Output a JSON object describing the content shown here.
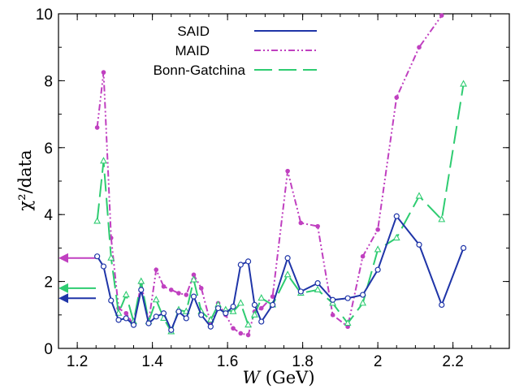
{
  "chart_data": {
    "type": "line",
    "xlabel_italic": "W",
    "xlabel_unit": " (GeV)",
    "ylabel": "χ²/data",
    "xlim": [
      1.15,
      2.35
    ],
    "ylim": [
      0,
      10
    ],
    "x_ticks": [
      "1.2",
      "1.4",
      "1.6",
      "1.8",
      "2",
      "2.2"
    ],
    "x_tick_values": [
      1.2,
      1.4,
      1.6,
      1.8,
      2.0,
      2.2
    ],
    "y_ticks": [
      "0",
      "2",
      "4",
      "6",
      "8",
      "10"
    ],
    "y_tick_values": [
      0,
      2,
      4,
      6,
      8,
      10
    ],
    "grid": false,
    "legend_position": "top-center",
    "series": [
      {
        "name": "SAID",
        "color": "#1f35a8",
        "dash": "",
        "marker": "open-circle",
        "x": [
          1.253,
          1.27,
          1.29,
          1.31,
          1.33,
          1.35,
          1.37,
          1.39,
          1.41,
          1.43,
          1.45,
          1.47,
          1.49,
          1.51,
          1.53,
          1.555,
          1.575,
          1.595,
          1.615,
          1.635,
          1.655,
          1.672,
          1.69,
          1.72,
          1.76,
          1.795,
          1.84,
          1.88,
          1.92,
          1.96,
          2.0,
          2.05,
          2.11,
          2.17,
          2.228
        ],
        "values": [
          2.75,
          2.45,
          1.43,
          0.85,
          0.9,
          0.7,
          1.75,
          0.75,
          0.95,
          1.05,
          0.55,
          1.1,
          0.9,
          1.55,
          1.0,
          0.65,
          1.2,
          1.05,
          1.25,
          2.5,
          2.6,
          1.3,
          0.8,
          1.3,
          2.7,
          1.7,
          1.95,
          1.45,
          1.5,
          1.6,
          2.35,
          3.95,
          3.1,
          1.3,
          3.0
        ]
      },
      {
        "name": "MAID",
        "color": "#c040c0",
        "dash": "8,3,2,3,2,3",
        "marker": "filled-circle",
        "x": [
          1.253,
          1.27,
          1.29,
          1.31,
          1.33,
          1.35,
          1.37,
          1.39,
          1.41,
          1.43,
          1.45,
          1.47,
          1.49,
          1.51,
          1.53,
          1.555,
          1.575,
          1.595,
          1.615,
          1.635,
          1.655,
          1.672,
          1.69,
          1.72,
          1.76,
          1.795,
          1.84,
          1.88,
          1.92,
          1.96,
          2.0,
          2.05,
          2.11,
          2.17
        ],
        "values": [
          6.6,
          8.25,
          3.3,
          1.2,
          1.05,
          0.7,
          1.95,
          0.8,
          2.35,
          1.85,
          1.75,
          1.65,
          1.6,
          2.2,
          1.8,
          0.75,
          1.35,
          1.0,
          0.6,
          0.45,
          0.4,
          1.1,
          1.2,
          1.55,
          5.3,
          3.75,
          3.65,
          1.0,
          0.65,
          2.75,
          3.55,
          7.5,
          9.0,
          9.95
        ]
      },
      {
        "name": "Bonn-Gatchina",
        "color": "#2ecc71",
        "dash": "22,8",
        "marker": "open-triangle",
        "x": [
          1.253,
          1.27,
          1.29,
          1.31,
          1.33,
          1.35,
          1.37,
          1.39,
          1.41,
          1.43,
          1.45,
          1.47,
          1.49,
          1.51,
          1.53,
          1.555,
          1.575,
          1.595,
          1.615,
          1.635,
          1.655,
          1.672,
          1.69,
          1.72,
          1.76,
          1.795,
          1.84,
          1.88,
          1.92,
          1.96,
          2.0,
          2.05,
          2.11,
          2.17,
          2.228
        ],
        "values": [
          3.8,
          5.6,
          2.7,
          1.05,
          1.6,
          0.8,
          2.0,
          0.8,
          1.45,
          0.9,
          0.5,
          1.15,
          1.1,
          2.05,
          1.1,
          0.85,
          1.3,
          1.15,
          1.1,
          1.35,
          0.7,
          1.0,
          1.5,
          1.3,
          2.2,
          1.65,
          1.75,
          1.35,
          0.75,
          1.35,
          2.95,
          3.3,
          4.55,
          3.85,
          7.9
        ]
      }
    ],
    "arrows": [
      {
        "series": "MAID",
        "value": 2.7,
        "color": "#c040c0"
      },
      {
        "series": "Bonn-Gatchina",
        "value": 1.8,
        "color": "#2ecc71"
      },
      {
        "series": "SAID",
        "value": 1.5,
        "color": "#1f35a8"
      }
    ]
  }
}
